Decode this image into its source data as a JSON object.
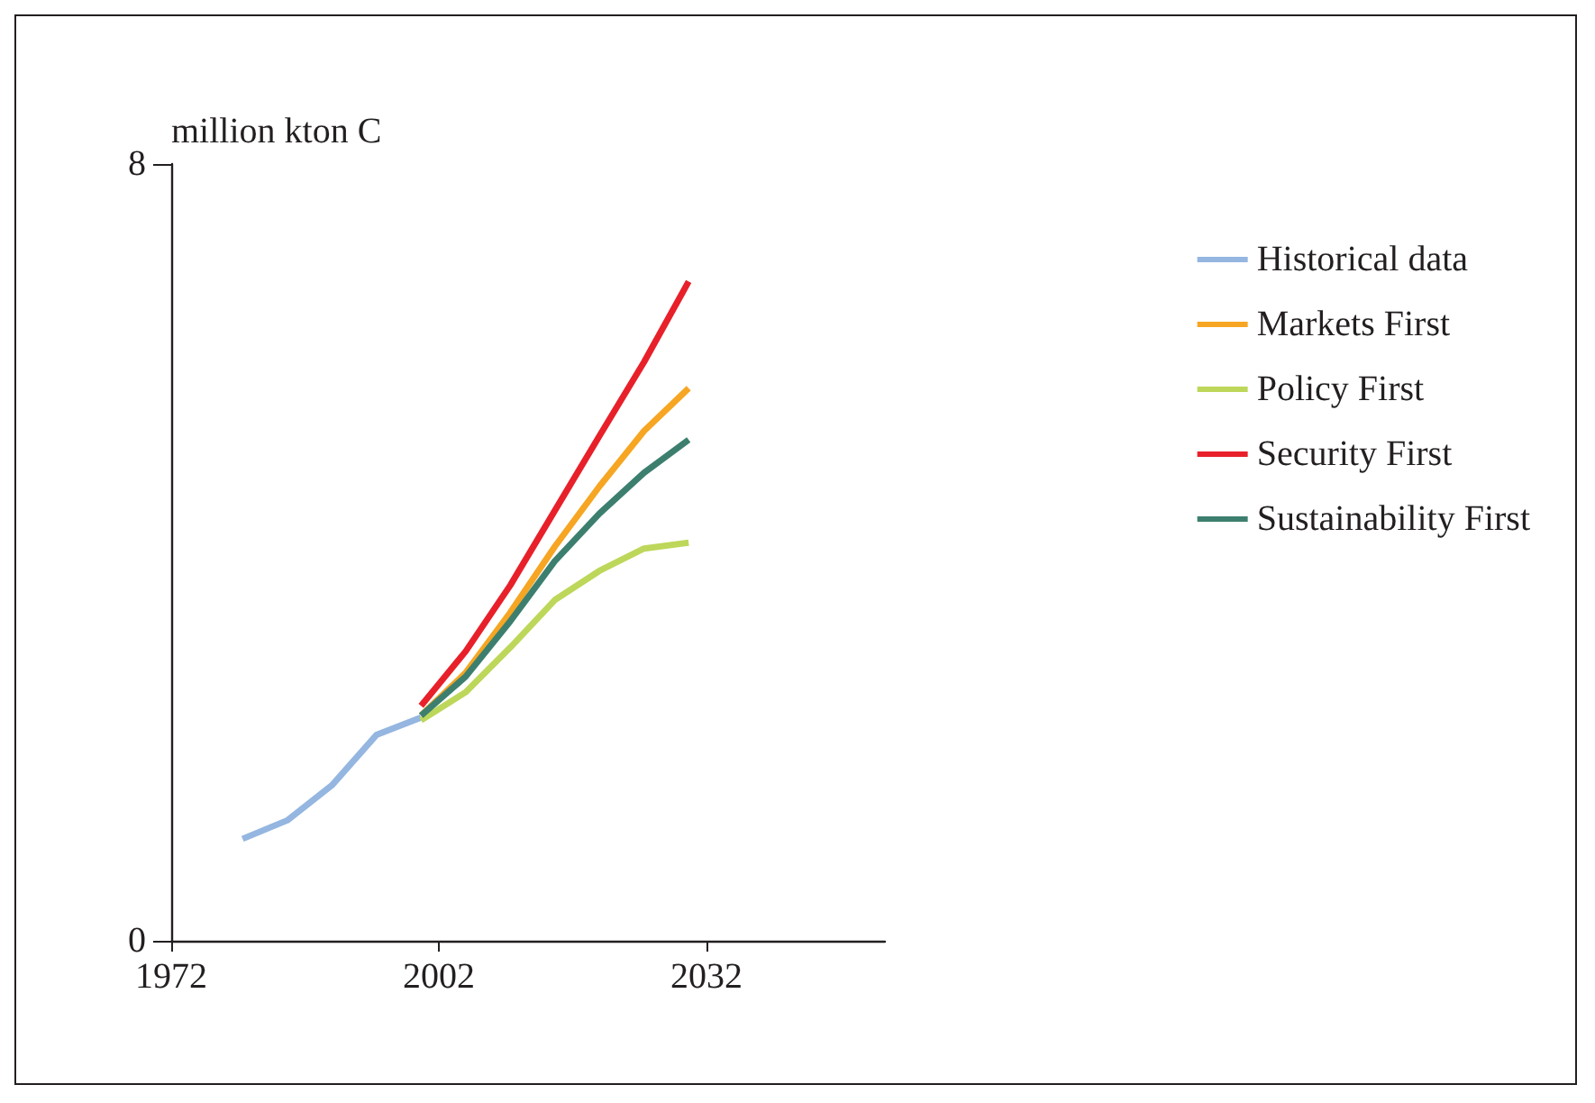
{
  "chart_data": {
    "type": "line",
    "ylabel": "million kton C",
    "xlim": [
      1972,
      2052
    ],
    "xticks": [
      1972,
      2002,
      2032
    ],
    "ylim": [
      0,
      8
    ],
    "yticks": [
      0,
      8
    ],
    "grid": false,
    "legend": "top right",
    "marker": "none",
    "line_style": "solid",
    "series": [
      {
        "name": "Historical data",
        "color": "#94b6e0",
        "x": [
          1980,
          1985,
          1990,
          1995,
          2000
        ],
        "values": [
          1.05,
          1.24,
          1.6,
          2.12,
          2.3
        ]
      },
      {
        "name": "Markets First",
        "color": "#f6a623",
        "x": [
          2000,
          2005,
          2010,
          2015,
          2020,
          2025,
          2030
        ],
        "values": [
          2.32,
          2.76,
          3.38,
          4.06,
          4.68,
          5.25,
          5.69
        ]
      },
      {
        "name": "Policy First",
        "color": "#bdd75a",
        "x": [
          2000,
          2005,
          2010,
          2015,
          2020,
          2025,
          2030
        ],
        "values": [
          2.27,
          2.56,
          3.02,
          3.51,
          3.81,
          4.04,
          4.1
        ]
      },
      {
        "name": "Security First",
        "color": "#e8202a",
        "x": [
          2000,
          2005,
          2010,
          2015,
          2020,
          2025,
          2030
        ],
        "values": [
          2.42,
          2.98,
          3.66,
          4.43,
          5.2,
          5.96,
          6.79
        ]
      },
      {
        "name": "Sustainability First",
        "color": "#3d7f6e",
        "x": [
          2000,
          2005,
          2010,
          2015,
          2020,
          2025,
          2030
        ],
        "values": [
          2.32,
          2.72,
          3.29,
          3.91,
          4.4,
          4.82,
          5.16
        ]
      }
    ]
  }
}
